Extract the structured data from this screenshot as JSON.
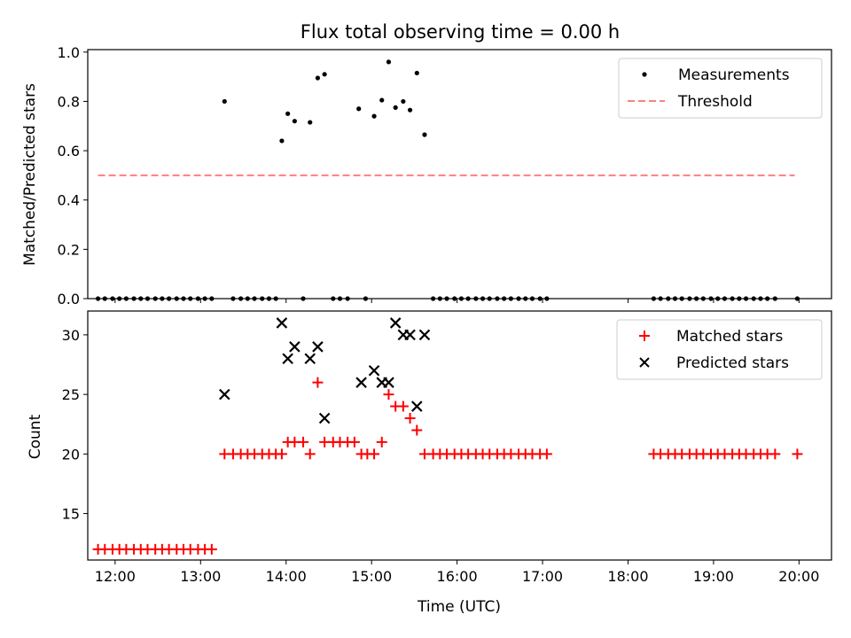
{
  "chart_data": [
    {
      "type": "scatter",
      "title": "Flux total observing time = 0.00 h",
      "ylabel": "Matched/Predicted stars",
      "xlabel": "",
      "xlim": [
        11.68,
        20.38
      ],
      "ylim": [
        0.0,
        1.01
      ],
      "yticks": [
        "0.0",
        "0.2",
        "0.4",
        "0.6",
        "0.8",
        "1.0"
      ],
      "grid": false,
      "legend_position": "top-right",
      "threshold": {
        "value": 0.5,
        "x_range": [
          11.8,
          19.95
        ],
        "color": "#ff7f7f",
        "style": "dashed"
      },
      "series": [
        {
          "name": "Measurements",
          "marker": "dot",
          "color": "#000000",
          "points": [
            [
              11.8,
              0
            ],
            [
              11.88,
              0
            ],
            [
              11.97,
              0
            ],
            [
              12.05,
              0
            ],
            [
              12.13,
              0
            ],
            [
              12.22,
              0
            ],
            [
              12.3,
              0
            ],
            [
              12.38,
              0
            ],
            [
              12.47,
              0
            ],
            [
              12.55,
              0
            ],
            [
              12.63,
              0
            ],
            [
              12.72,
              0
            ],
            [
              12.8,
              0
            ],
            [
              12.88,
              0
            ],
            [
              12.97,
              0
            ],
            [
              13.05,
              0
            ],
            [
              13.13,
              0
            ],
            [
              13.28,
              0.8
            ],
            [
              13.38,
              0
            ],
            [
              13.47,
              0
            ],
            [
              13.55,
              0
            ],
            [
              13.63,
              0
            ],
            [
              13.72,
              0
            ],
            [
              13.8,
              0
            ],
            [
              13.88,
              0
            ],
            [
              13.95,
              0.64
            ],
            [
              14.02,
              0.75
            ],
            [
              14.1,
              0.72
            ],
            [
              14.2,
              0
            ],
            [
              14.28,
              0.715
            ],
            [
              14.37,
              0.895
            ],
            [
              14.45,
              0.91
            ],
            [
              14.55,
              0
            ],
            [
              14.63,
              0
            ],
            [
              14.72,
              0
            ],
            [
              14.85,
              0.77
            ],
            [
              14.93,
              0
            ],
            [
              15.03,
              0.74
            ],
            [
              15.12,
              0.805
            ],
            [
              15.2,
              0.96
            ],
            [
              15.28,
              0.775
            ],
            [
              15.37,
              0.8
            ],
            [
              15.45,
              0.765
            ],
            [
              15.53,
              0.915
            ],
            [
              15.62,
              0.665
            ],
            [
              15.72,
              0
            ],
            [
              15.8,
              0
            ],
            [
              15.88,
              0
            ],
            [
              15.97,
              0
            ],
            [
              16.05,
              0
            ],
            [
              16.13,
              0
            ],
            [
              16.22,
              0
            ],
            [
              16.3,
              0
            ],
            [
              16.38,
              0
            ],
            [
              16.47,
              0
            ],
            [
              16.55,
              0
            ],
            [
              16.63,
              0
            ],
            [
              16.72,
              0
            ],
            [
              16.8,
              0
            ],
            [
              16.88,
              0
            ],
            [
              16.97,
              0
            ],
            [
              17.05,
              0
            ],
            [
              18.3,
              0
            ],
            [
              18.38,
              0
            ],
            [
              18.47,
              0
            ],
            [
              18.55,
              0
            ],
            [
              18.63,
              0
            ],
            [
              18.72,
              0
            ],
            [
              18.8,
              0
            ],
            [
              18.88,
              0
            ],
            [
              18.97,
              0
            ],
            [
              19.05,
              0
            ],
            [
              19.13,
              0
            ],
            [
              19.22,
              0
            ],
            [
              19.3,
              0
            ],
            [
              19.38,
              0
            ],
            [
              19.47,
              0
            ],
            [
              19.55,
              0
            ],
            [
              19.63,
              0
            ],
            [
              19.72,
              0
            ],
            [
              19.98,
              0
            ]
          ]
        },
        {
          "name": "Threshold",
          "marker": "dashed-line",
          "color": "#ff7f7f"
        }
      ]
    },
    {
      "type": "scatter",
      "title": "",
      "xlabel": "Time (UTC)",
      "ylabel": "Count",
      "xlim": [
        11.68,
        20.38
      ],
      "ylim": [
        11.1,
        32.0
      ],
      "xticks": [
        {
          "value": 12,
          "label": "12:00"
        },
        {
          "value": 13,
          "label": "13:00"
        },
        {
          "value": 14,
          "label": "14:00"
        },
        {
          "value": 15,
          "label": "15:00"
        },
        {
          "value": 16,
          "label": "16:00"
        },
        {
          "value": 17,
          "label": "17:00"
        },
        {
          "value": 18,
          "label": "18:00"
        },
        {
          "value": 19,
          "label": "19:00"
        },
        {
          "value": 20,
          "label": "20:00"
        }
      ],
      "yticks": [
        "15",
        "20",
        "25",
        "30"
      ],
      "grid": false,
      "legend_position": "top-right",
      "series": [
        {
          "name": "Matched stars",
          "marker": "plus",
          "color": "#ff0000",
          "points": [
            [
              11.8,
              12
            ],
            [
              11.88,
              12
            ],
            [
              11.97,
              12
            ],
            [
              12.05,
              12
            ],
            [
              12.13,
              12
            ],
            [
              12.22,
              12
            ],
            [
              12.3,
              12
            ],
            [
              12.38,
              12
            ],
            [
              12.47,
              12
            ],
            [
              12.55,
              12
            ],
            [
              12.63,
              12
            ],
            [
              12.72,
              12
            ],
            [
              12.8,
              12
            ],
            [
              12.88,
              12
            ],
            [
              12.97,
              12
            ],
            [
              13.05,
              12
            ],
            [
              13.13,
              12
            ],
            [
              13.28,
              20
            ],
            [
              13.38,
              20
            ],
            [
              13.47,
              20
            ],
            [
              13.55,
              20
            ],
            [
              13.63,
              20
            ],
            [
              13.72,
              20
            ],
            [
              13.8,
              20
            ],
            [
              13.88,
              20
            ],
            [
              13.95,
              20
            ],
            [
              14.02,
              21
            ],
            [
              14.1,
              21
            ],
            [
              14.2,
              21
            ],
            [
              14.28,
              20
            ],
            [
              14.37,
              26
            ],
            [
              14.45,
              21
            ],
            [
              14.55,
              21
            ],
            [
              14.63,
              21
            ],
            [
              14.72,
              21
            ],
            [
              14.8,
              21
            ],
            [
              14.88,
              20
            ],
            [
              14.95,
              20
            ],
            [
              15.03,
              20
            ],
            [
              15.12,
              21
            ],
            [
              15.2,
              25
            ],
            [
              15.28,
              24
            ],
            [
              15.37,
              24
            ],
            [
              15.45,
              23
            ],
            [
              15.53,
              22
            ],
            [
              15.62,
              20
            ],
            [
              15.72,
              20
            ],
            [
              15.8,
              20
            ],
            [
              15.88,
              20
            ],
            [
              15.97,
              20
            ],
            [
              16.05,
              20
            ],
            [
              16.13,
              20
            ],
            [
              16.22,
              20
            ],
            [
              16.3,
              20
            ],
            [
              16.38,
              20
            ],
            [
              16.47,
              20
            ],
            [
              16.55,
              20
            ],
            [
              16.63,
              20
            ],
            [
              16.72,
              20
            ],
            [
              16.8,
              20
            ],
            [
              16.88,
              20
            ],
            [
              16.97,
              20
            ],
            [
              17.05,
              20
            ],
            [
              18.3,
              20
            ],
            [
              18.38,
              20
            ],
            [
              18.47,
              20
            ],
            [
              18.55,
              20
            ],
            [
              18.63,
              20
            ],
            [
              18.72,
              20
            ],
            [
              18.8,
              20
            ],
            [
              18.88,
              20
            ],
            [
              18.97,
              20
            ],
            [
              19.05,
              20
            ],
            [
              19.13,
              20
            ],
            [
              19.22,
              20
            ],
            [
              19.3,
              20
            ],
            [
              19.38,
              20
            ],
            [
              19.47,
              20
            ],
            [
              19.55,
              20
            ],
            [
              19.63,
              20
            ],
            [
              19.72,
              20
            ],
            [
              19.98,
              20
            ]
          ]
        },
        {
          "name": "Predicted stars",
          "marker": "x",
          "color": "#000000",
          "points": [
            [
              13.28,
              25
            ],
            [
              13.95,
              31
            ],
            [
              14.02,
              28
            ],
            [
              14.1,
              29
            ],
            [
              14.28,
              28
            ],
            [
              14.37,
              29
            ],
            [
              14.45,
              23
            ],
            [
              14.88,
              26
            ],
            [
              15.03,
              27
            ],
            [
              15.12,
              26
            ],
            [
              15.2,
              26
            ],
            [
              15.28,
              31
            ],
            [
              15.37,
              30
            ],
            [
              15.45,
              30
            ],
            [
              15.53,
              24
            ],
            [
              15.62,
              30
            ]
          ]
        }
      ]
    }
  ]
}
